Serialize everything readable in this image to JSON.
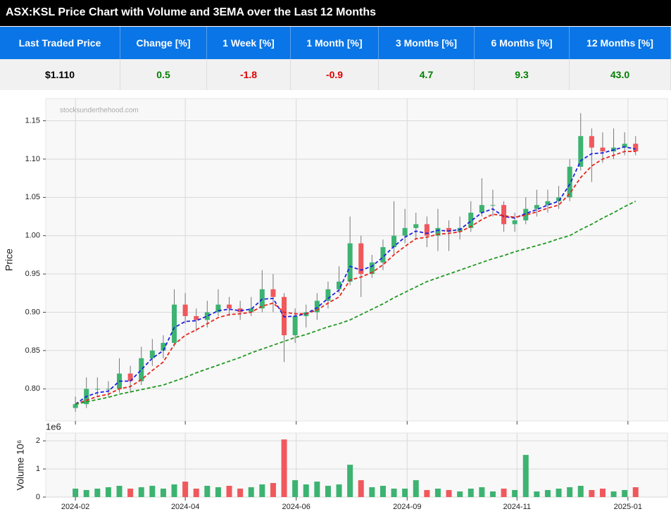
{
  "header": {
    "title": "ASX:KSL Price Chart with Volume and 3EMA over the Last 12 Months"
  },
  "table": {
    "headers": [
      "Last Traded Price",
      "Change [%]",
      "1 Week [%]",
      "1 Month [%]",
      "3 Months [%]",
      "6 Months [%]",
      "12 Months [%]"
    ],
    "values": [
      "$1.110",
      "0.5",
      "-1.8",
      "-0.9",
      "4.7",
      "9.3",
      "43.0"
    ],
    "value_colors": [
      "#000000",
      "#008000",
      "#e00000",
      "#e00000",
      "#008000",
      "#008000",
      "#008000"
    ]
  },
  "chart_data": [
    {
      "type": "candlestick",
      "ylabel": "Price",
      "watermark": "stocksunderthehood.com",
      "up_color": "#3cb371",
      "down_color": "#f0585c",
      "grid": true,
      "ylim": [
        0.758,
        1.179
      ],
      "yticks": [
        {
          "value": 0.8,
          "label": "0.80"
        },
        0.85,
        {
          "value": 0.9,
          "label": "0.90"
        },
        0.95,
        {
          "value": 1.0,
          "label": "1.00"
        },
        1.05,
        {
          "value": 1.1,
          "label": "1.10"
        },
        1.15
      ],
      "xlim": [
        -2.7,
        53.9
      ],
      "xticks": [
        0,
        10,
        20.1,
        30.2,
        40.2,
        50.3
      ],
      "open": [
        0.775,
        0.78,
        0.8,
        0.8,
        0.8,
        0.82,
        0.81,
        0.84,
        0.85,
        0.86,
        0.91,
        0.895,
        0.89,
        0.9,
        0.91,
        0.905,
        0.9,
        0.905,
        0.93,
        0.92,
        0.87,
        0.895,
        0.9,
        0.915,
        0.93,
        0.94,
        0.99,
        0.95,
        0.965,
        0.985,
        1.0,
        1.01,
        1.015,
        1.0,
        1.01,
        1.005,
        1.01,
        1.03,
        1.04,
        1.04,
        1.015,
        1.02,
        1.035,
        1.04,
        1.045,
        1.05,
        1.09,
        1.13,
        1.115,
        1.11,
        1.115,
        1.12
      ],
      "high": [
        0.79,
        0.815,
        0.815,
        0.81,
        0.84,
        0.83,
        0.855,
        0.865,
        0.87,
        0.93,
        0.925,
        0.905,
        0.915,
        0.93,
        0.92,
        0.915,
        0.92,
        0.955,
        0.95,
        0.925,
        0.905,
        0.91,
        0.925,
        0.94,
        0.96,
        1.025,
        1.0,
        0.975,
        0.995,
        1.045,
        1.035,
        1.03,
        1.025,
        1.035,
        1.02,
        1.025,
        1.045,
        1.075,
        1.06,
        1.045,
        1.03,
        1.05,
        1.06,
        1.06,
        1.065,
        1.1,
        1.16,
        1.14,
        1.135,
        1.14,
        1.135,
        1.13
      ],
      "low": [
        0.77,
        0.775,
        0.79,
        0.79,
        0.795,
        0.795,
        0.805,
        0.83,
        0.84,
        0.855,
        0.885,
        0.875,
        0.88,
        0.895,
        0.895,
        0.89,
        0.895,
        0.9,
        0.9,
        0.835,
        0.86,
        0.88,
        0.89,
        0.905,
        0.925,
        0.935,
        0.92,
        0.945,
        0.955,
        0.975,
        0.99,
        0.995,
        0.985,
        0.98,
        0.98,
        0.995,
        1.005,
        1.025,
        1.025,
        1.005,
        1.005,
        1.015,
        1.025,
        1.03,
        1.035,
        1.045,
        1.085,
        1.07,
        1.095,
        1.1,
        1.105,
        1.105
      ],
      "close": [
        0.78,
        0.8,
        0.8,
        0.8,
        0.82,
        0.81,
        0.84,
        0.85,
        0.86,
        0.91,
        0.895,
        0.89,
        0.9,
        0.91,
        0.905,
        0.9,
        0.905,
        0.93,
        0.92,
        0.87,
        0.895,
        0.9,
        0.915,
        0.93,
        0.94,
        0.99,
        0.95,
        0.965,
        0.985,
        1.0,
        1.01,
        1.015,
        1.0,
        1.01,
        1.005,
        1.01,
        1.03,
        1.04,
        1.04,
        1.015,
        1.02,
        1.035,
        1.04,
        1.045,
        1.05,
        1.09,
        1.13,
        1.115,
        1.11,
        1.115,
        1.12,
        1.11
      ],
      "series": [
        {
          "color": "#1f1fe6",
          "values": [
            0.78,
            0.79,
            0.795,
            0.797,
            0.81,
            0.81,
            0.825,
            0.84,
            0.85,
            0.88,
            0.888,
            0.889,
            0.895,
            0.902,
            0.904,
            0.902,
            0.904,
            0.917,
            0.918,
            0.894,
            0.895,
            0.898,
            0.906,
            0.918,
            0.929,
            0.96,
            0.955,
            0.96,
            0.972,
            0.986,
            0.998,
            1.006,
            1.003,
            1.007,
            1.006,
            1.008,
            1.019,
            1.03,
            1.035,
            1.025,
            1.023,
            1.029,
            1.034,
            1.04,
            1.045,
            1.067,
            1.098,
            1.107,
            1.108,
            1.112,
            1.116,
            1.113
          ]
        },
        {
          "color": "#e8261c",
          "values": [
            0.78,
            0.785,
            0.79,
            0.793,
            0.8,
            0.803,
            0.812,
            0.824,
            0.835,
            0.858,
            0.87,
            0.877,
            0.885,
            0.893,
            0.897,
            0.898,
            0.9,
            0.908,
            0.912,
            0.9,
            0.898,
            0.898,
            0.903,
            0.912,
            0.92,
            0.942,
            0.946,
            0.952,
            0.962,
            0.975,
            0.986,
            0.996,
            0.998,
            1.002,
            1.003,
            1.005,
            1.012,
            1.021,
            1.028,
            1.026,
            1.024,
            1.027,
            1.031,
            1.036,
            1.04,
            1.055,
            1.076,
            1.091,
            1.1,
            1.105,
            1.11,
            1.11
          ]
        },
        {
          "color": "#229922",
          "values": [
            0.78,
            0.783,
            0.786,
            0.789,
            0.793,
            0.796,
            0.799,
            0.802,
            0.805,
            0.81,
            0.815,
            0.821,
            0.826,
            0.831,
            0.836,
            0.841,
            0.847,
            0.852,
            0.857,
            0.862,
            0.867,
            0.871,
            0.876,
            0.881,
            0.885,
            0.89,
            0.897,
            0.904,
            0.911,
            0.919,
            0.926,
            0.933,
            0.94,
            0.945,
            0.95,
            0.955,
            0.96,
            0.965,
            0.97,
            0.974,
            0.979,
            0.983,
            0.987,
            0.991,
            0.996,
            1.0,
            1.008,
            1.015,
            1.023,
            1.03,
            1.038,
            1.045
          ]
        }
      ]
    },
    {
      "type": "bar",
      "ylabel": "Volume  10⁶",
      "offset_label": "1e6",
      "grid": true,
      "ylim": [
        0,
        2.28
      ],
      "yticks": [
        0,
        1,
        2
      ],
      "xlim": [
        -2.7,
        53.9
      ],
      "xticks": [
        {
          "value": 0,
          "label": "2024-02"
        },
        {
          "value": 10,
          "label": "2024-04"
        },
        {
          "value": 20.1,
          "label": "2024-06"
        },
        {
          "value": 30.2,
          "label": "2024-09"
        },
        {
          "value": 40.2,
          "label": "2024-11"
        },
        {
          "value": 50.3,
          "label": "2025-01"
        }
      ],
      "values": [
        0.3,
        0.25,
        0.3,
        0.35,
        0.4,
        0.3,
        0.35,
        0.4,
        0.3,
        0.45,
        0.55,
        0.3,
        0.4,
        0.35,
        0.4,
        0.3,
        0.35,
        0.45,
        0.5,
        2.05,
        0.6,
        0.45,
        0.55,
        0.4,
        0.45,
        1.15,
        0.6,
        0.35,
        0.4,
        0.3,
        0.3,
        0.6,
        0.25,
        0.3,
        0.25,
        0.2,
        0.3,
        0.35,
        0.2,
        0.3,
        0.25,
        1.5,
        0.2,
        0.25,
        0.3,
        0.35,
        0.4,
        0.25,
        0.3,
        0.2,
        0.25,
        0.35
      ]
    }
  ]
}
